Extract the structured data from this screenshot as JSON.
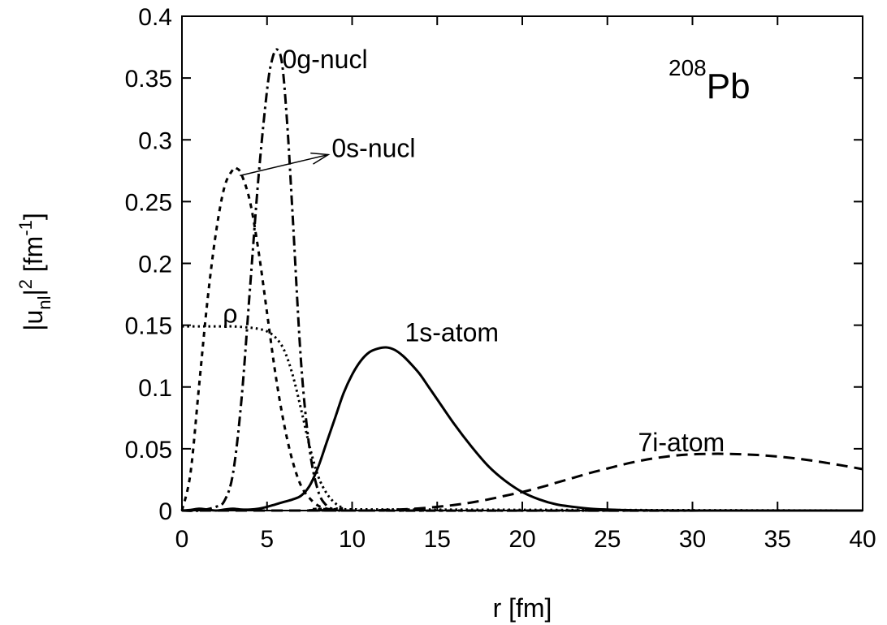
{
  "chart_data": {
    "type": "line",
    "title": "",
    "nucleus": {
      "mass": "208",
      "symbol": "Pb"
    },
    "xlabel": "r [fm]",
    "ylabel": {
      "base": "|u",
      "sub": "nl",
      "mid": "|",
      "sup": "2",
      "unit": " [fm",
      "unit_sup": "-1",
      "end": "]"
    },
    "xlim": [
      0,
      40
    ],
    "ylim": [
      0,
      0.4
    ],
    "xticks": [
      0,
      5,
      10,
      15,
      20,
      25,
      30,
      35,
      40
    ],
    "yticks": [
      0,
      0.05,
      0.1,
      0.15,
      0.2,
      0.25,
      0.3,
      0.35,
      0.4
    ],
    "xtick_labels": [
      "0",
      "5",
      "10",
      "15",
      "20",
      "25",
      "30",
      "35",
      "40"
    ],
    "ytick_labels": [
      "0",
      "0.05",
      "0.1",
      "0.15",
      "0.2",
      "0.25",
      "0.3",
      "0.35",
      "0.4"
    ],
    "grid": false,
    "series": [
      {
        "name": "0g-nucl",
        "style": "dashdot",
        "x": [
          0,
          1,
          2,
          2.5,
          3,
          3.5,
          4,
          4.5,
          5,
          5.3,
          5.6,
          5.9,
          6.2,
          6.5,
          7,
          7.5,
          8,
          8.5,
          9,
          10,
          40
        ],
        "y": [
          0,
          0,
          0.003,
          0.008,
          0.03,
          0.09,
          0.18,
          0.27,
          0.34,
          0.365,
          0.373,
          0.36,
          0.31,
          0.24,
          0.12,
          0.05,
          0.016,
          0.004,
          0.001,
          0,
          0
        ]
      },
      {
        "name": "0s-nucl",
        "style": "dash",
        "x": [
          0,
          0.5,
          1,
          1.5,
          2,
          2.5,
          3,
          3.2,
          3.5,
          4,
          4.5,
          5,
          5.5,
          6,
          6.5,
          7,
          7.5,
          8,
          8.5,
          9,
          10,
          40
        ],
        "y": [
          0,
          0.03,
          0.1,
          0.17,
          0.225,
          0.262,
          0.276,
          0.277,
          0.272,
          0.25,
          0.21,
          0.16,
          0.11,
          0.07,
          0.04,
          0.02,
          0.01,
          0.004,
          0.0015,
          0.0005,
          0,
          0
        ]
      },
      {
        "name": "ρ",
        "style": "dot",
        "x": [
          0,
          1,
          2,
          3,
          4,
          4.5,
          5,
          5.5,
          6,
          6.5,
          7,
          7.5,
          8,
          8.5,
          9,
          9.5,
          10,
          40
        ],
        "y": [
          0.149,
          0.149,
          0.149,
          0.149,
          0.148,
          0.147,
          0.145,
          0.14,
          0.13,
          0.11,
          0.082,
          0.052,
          0.028,
          0.014,
          0.006,
          0.002,
          0.001,
          0
        ]
      },
      {
        "name": "1s-atom",
        "style": "solid",
        "x": [
          0,
          0.5,
          1,
          1.5,
          2,
          2.5,
          3,
          3.5,
          4,
          4.5,
          5,
          5.5,
          6,
          6.5,
          7,
          7.5,
          8,
          8.5,
          9,
          9.5,
          10,
          10.5,
          11,
          11.5,
          12,
          12.5,
          13,
          13.5,
          14,
          14.5,
          15,
          16,
          17,
          18,
          19,
          20,
          21,
          22,
          23,
          24,
          25,
          26,
          27,
          28,
          30,
          40
        ],
        "y": [
          0,
          0.0005,
          0.0015,
          0.0008,
          0,
          0.0008,
          0.0015,
          0.0008,
          0.0008,
          0.0015,
          0.003,
          0.005,
          0.007,
          0.009,
          0.012,
          0.02,
          0.035,
          0.055,
          0.075,
          0.095,
          0.11,
          0.121,
          0.128,
          0.131,
          0.132,
          0.13,
          0.125,
          0.118,
          0.11,
          0.1,
          0.09,
          0.07,
          0.052,
          0.036,
          0.024,
          0.015,
          0.009,
          0.005,
          0.003,
          0.0015,
          0.0008,
          0.0004,
          0.0002,
          0.0001,
          0,
          0
        ]
      },
      {
        "name": "7i-atom",
        "style": "longdash",
        "x": [
          0,
          10,
          12,
          13,
          14,
          15,
          16,
          17,
          18,
          19,
          20,
          21,
          22,
          23,
          24,
          25,
          26,
          27,
          28,
          29,
          30,
          31,
          32,
          33,
          34,
          35,
          36,
          37,
          38,
          39,
          40
        ],
        "y": [
          0,
          0,
          0.0005,
          0.001,
          0.0018,
          0.003,
          0.0045,
          0.0065,
          0.009,
          0.012,
          0.015,
          0.0185,
          0.0225,
          0.0265,
          0.0305,
          0.034,
          0.0375,
          0.0405,
          0.0428,
          0.0445,
          0.0455,
          0.0459,
          0.0459,
          0.0455,
          0.0448,
          0.0437,
          0.0423,
          0.0405,
          0.0383,
          0.036,
          0.0335
        ]
      }
    ],
    "annotations": [
      {
        "text": "0g-nucl",
        "at_series": "0g-nucl",
        "x": 5.9,
        "y": 0.358
      },
      {
        "text": "0s-nucl",
        "at_series": "0s-nucl",
        "x": 8.8,
        "y": 0.286
      },
      {
        "text": "ρ",
        "at_series": "ρ",
        "x": 2.4,
        "y": 0.152
      },
      {
        "text": "1s-atom",
        "at_series": "1s-atom",
        "x": 13.1,
        "y": 0.137
      },
      {
        "text": "7i-atom",
        "at_series": "7i-atom",
        "x": 26.8,
        "y": 0.048
      }
    ],
    "arrow": {
      "from_x": 3.4,
      "from_y": 0.271,
      "to_x": 8.6,
      "to_y": 0.288
    }
  }
}
